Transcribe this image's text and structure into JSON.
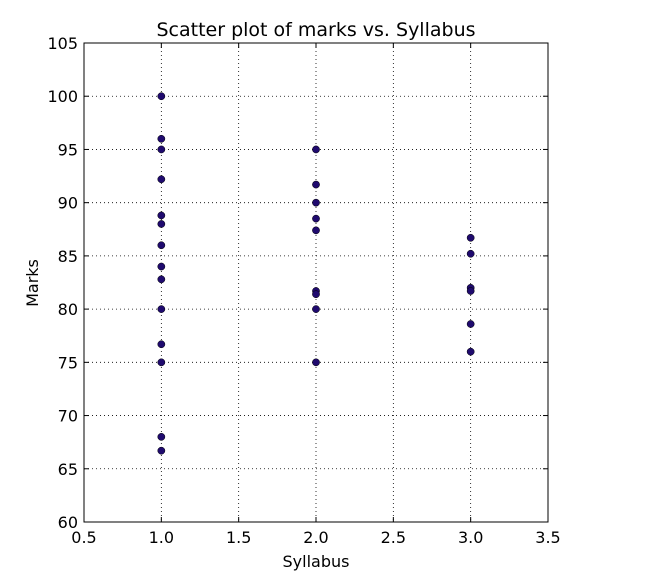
{
  "chart_data": {
    "type": "scatter",
    "title": "Scatter plot of marks vs. Syllabus",
    "xlabel": "Syllabus",
    "ylabel": "Marks",
    "xlim": [
      0.5,
      3.5
    ],
    "ylim": [
      60,
      105
    ],
    "xticks": [
      0.5,
      1.0,
      1.5,
      2.0,
      2.5,
      3.0,
      3.5
    ],
    "xtick_labels": [
      "0.5",
      "1.0",
      "1.5",
      "2.0",
      "2.5",
      "3.0",
      "3.5"
    ],
    "yticks": [
      60,
      65,
      70,
      75,
      80,
      85,
      90,
      95,
      100,
      105
    ],
    "ytick_labels": [
      "60",
      "65",
      "70",
      "75",
      "80",
      "85",
      "90",
      "95",
      "100",
      "105"
    ],
    "grid": true,
    "legend": "none",
    "marker_color": "#1f0a6e",
    "series": [
      {
        "points": [
          {
            "x": 1,
            "y": 100
          },
          {
            "x": 1,
            "y": 96
          },
          {
            "x": 1,
            "y": 95
          },
          {
            "x": 1,
            "y": 92.2
          },
          {
            "x": 1,
            "y": 88.8
          },
          {
            "x": 1,
            "y": 88
          },
          {
            "x": 1,
            "y": 86
          },
          {
            "x": 1,
            "y": 84
          },
          {
            "x": 1,
            "y": 82.8
          },
          {
            "x": 1,
            "y": 80
          },
          {
            "x": 1,
            "y": 76.7
          },
          {
            "x": 1,
            "y": 75
          },
          {
            "x": 1,
            "y": 68
          },
          {
            "x": 1,
            "y": 66.7
          },
          {
            "x": 2,
            "y": 95
          },
          {
            "x": 2,
            "y": 91.7
          },
          {
            "x": 2,
            "y": 90
          },
          {
            "x": 2,
            "y": 88.5
          },
          {
            "x": 2,
            "y": 87.4
          },
          {
            "x": 2,
            "y": 81.7
          },
          {
            "x": 2,
            "y": 81.4
          },
          {
            "x": 2,
            "y": 80
          },
          {
            "x": 2,
            "y": 75
          },
          {
            "x": 3,
            "y": 86.7
          },
          {
            "x": 3,
            "y": 85.2
          },
          {
            "x": 3,
            "y": 82
          },
          {
            "x": 3,
            "y": 81.7
          },
          {
            "x": 3,
            "y": 78.6
          },
          {
            "x": 3,
            "y": 76
          }
        ]
      }
    ]
  }
}
